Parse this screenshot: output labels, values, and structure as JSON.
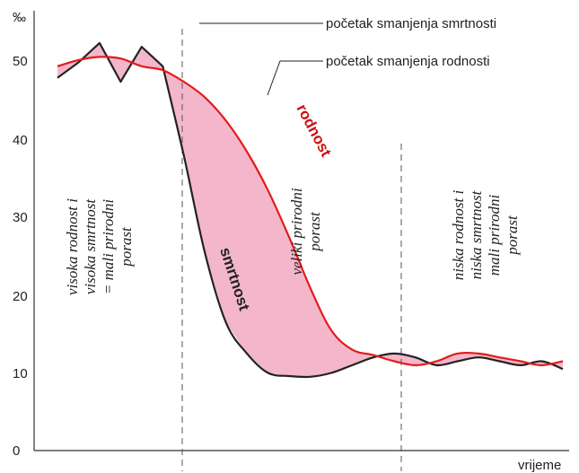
{
  "chart_data": {
    "type": "line",
    "y_unit": "‰",
    "xlabel": "vrijeme",
    "ylim": [
      0,
      55
    ],
    "y_ticks": [
      "0",
      "10",
      "20",
      "30",
      "40",
      "50"
    ],
    "x": [
      0,
      1,
      2,
      3,
      4,
      5,
      6,
      7,
      8,
      9,
      10,
      11,
      12,
      13,
      14,
      15,
      16,
      17,
      18,
      19,
      20,
      21,
      22,
      23,
      24
    ],
    "series": [
      {
        "name": "rodnost",
        "color": "#e31b1b",
        "values": [
          49.5,
          50.3,
          50.7,
          50.5,
          49.5,
          49.0,
          47.5,
          45.5,
          42.5,
          38.5,
          33.5,
          27.5,
          21.0,
          15.5,
          13.0,
          12.3,
          11.5,
          11.0,
          11.5,
          12.5,
          12.5,
          12.0,
          11.5,
          11.0,
          11.5
        ]
      },
      {
        "name": "smrtnost",
        "color": "#222222",
        "values": [
          48.0,
          50.0,
          52.5,
          47.5,
          52.0,
          49.5,
          38.0,
          25.5,
          16.5,
          12.5,
          10.0,
          9.6,
          9.5,
          10.0,
          11.0,
          12.0,
          12.5,
          12.0,
          11.0,
          11.5,
          12.0,
          11.5,
          11.0,
          11.5,
          10.5
        ]
      }
    ],
    "shading": {
      "between": [
        "rodnost",
        "smrtnost"
      ],
      "color": "#f4b6ca"
    },
    "annotations": {
      "mortality_decline_start": "početak smanjenja smrtnosti",
      "birth_decline_start": "početak smanjenja rodnosti",
      "label_birth": "rodnost",
      "label_death": "smrtnost",
      "phase_1": [
        "visoka rodnost i",
        "visoka smrtnost",
        "= mali prirodni",
        "porast"
      ],
      "phase_2": [
        "veliki prirodni",
        "porast"
      ],
      "phase_3": [
        "niska rodnost i",
        "niska smrtnost",
        "mali prirodni",
        "porast"
      ]
    },
    "phase_boundaries_x": [
      5.8,
      16.7
    ],
    "grid": false,
    "legend": "none"
  }
}
